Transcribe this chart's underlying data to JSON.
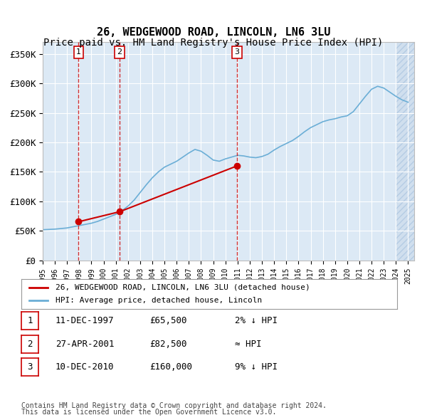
{
  "title": "26, WEDGEWOOD ROAD, LINCOLN, LN6 3LU",
  "subtitle": "Price paid vs. HM Land Registry's House Price Index (HPI)",
  "ylabel": "",
  "ylim": [
    0,
    370000
  ],
  "yticks": [
    0,
    50000,
    100000,
    150000,
    200000,
    250000,
    300000,
    350000
  ],
  "ytick_labels": [
    "£0",
    "£50K",
    "£100K",
    "£150K",
    "£200K",
    "£250K",
    "£300K",
    "£350K"
  ],
  "background_color": "#ffffff",
  "plot_bg_color": "#dce9f5",
  "grid_color": "#ffffff",
  "hpi_color": "#6baed6",
  "sale_color": "#cc0000",
  "sale_dates": [
    "1997-12-11",
    "2001-04-27",
    "2010-12-10"
  ],
  "sale_prices": [
    65500,
    82500,
    160000
  ],
  "sale_labels": [
    "1",
    "2",
    "3"
  ],
  "vline_color": "#cc0000",
  "legend_label_sale": "26, WEDGEWOOD ROAD, LINCOLN, LN6 3LU (detached house)",
  "legend_label_hpi": "HPI: Average price, detached house, Lincoln",
  "table_data": [
    [
      "1",
      "11-DEC-1997",
      "£65,500",
      "2% ↓ HPI"
    ],
    [
      "2",
      "27-APR-2001",
      "£82,500",
      "≈ HPI"
    ],
    [
      "3",
      "10-DEC-2010",
      "£160,000",
      "9% ↓ HPI"
    ]
  ],
  "footnote1": "Contains HM Land Registry data © Crown copyright and database right 2024.",
  "footnote2": "This data is licensed under the Open Government Licence v3.0.",
  "hatch_color": "#aac4e0",
  "title_fontsize": 11,
  "subtitle_fontsize": 10
}
